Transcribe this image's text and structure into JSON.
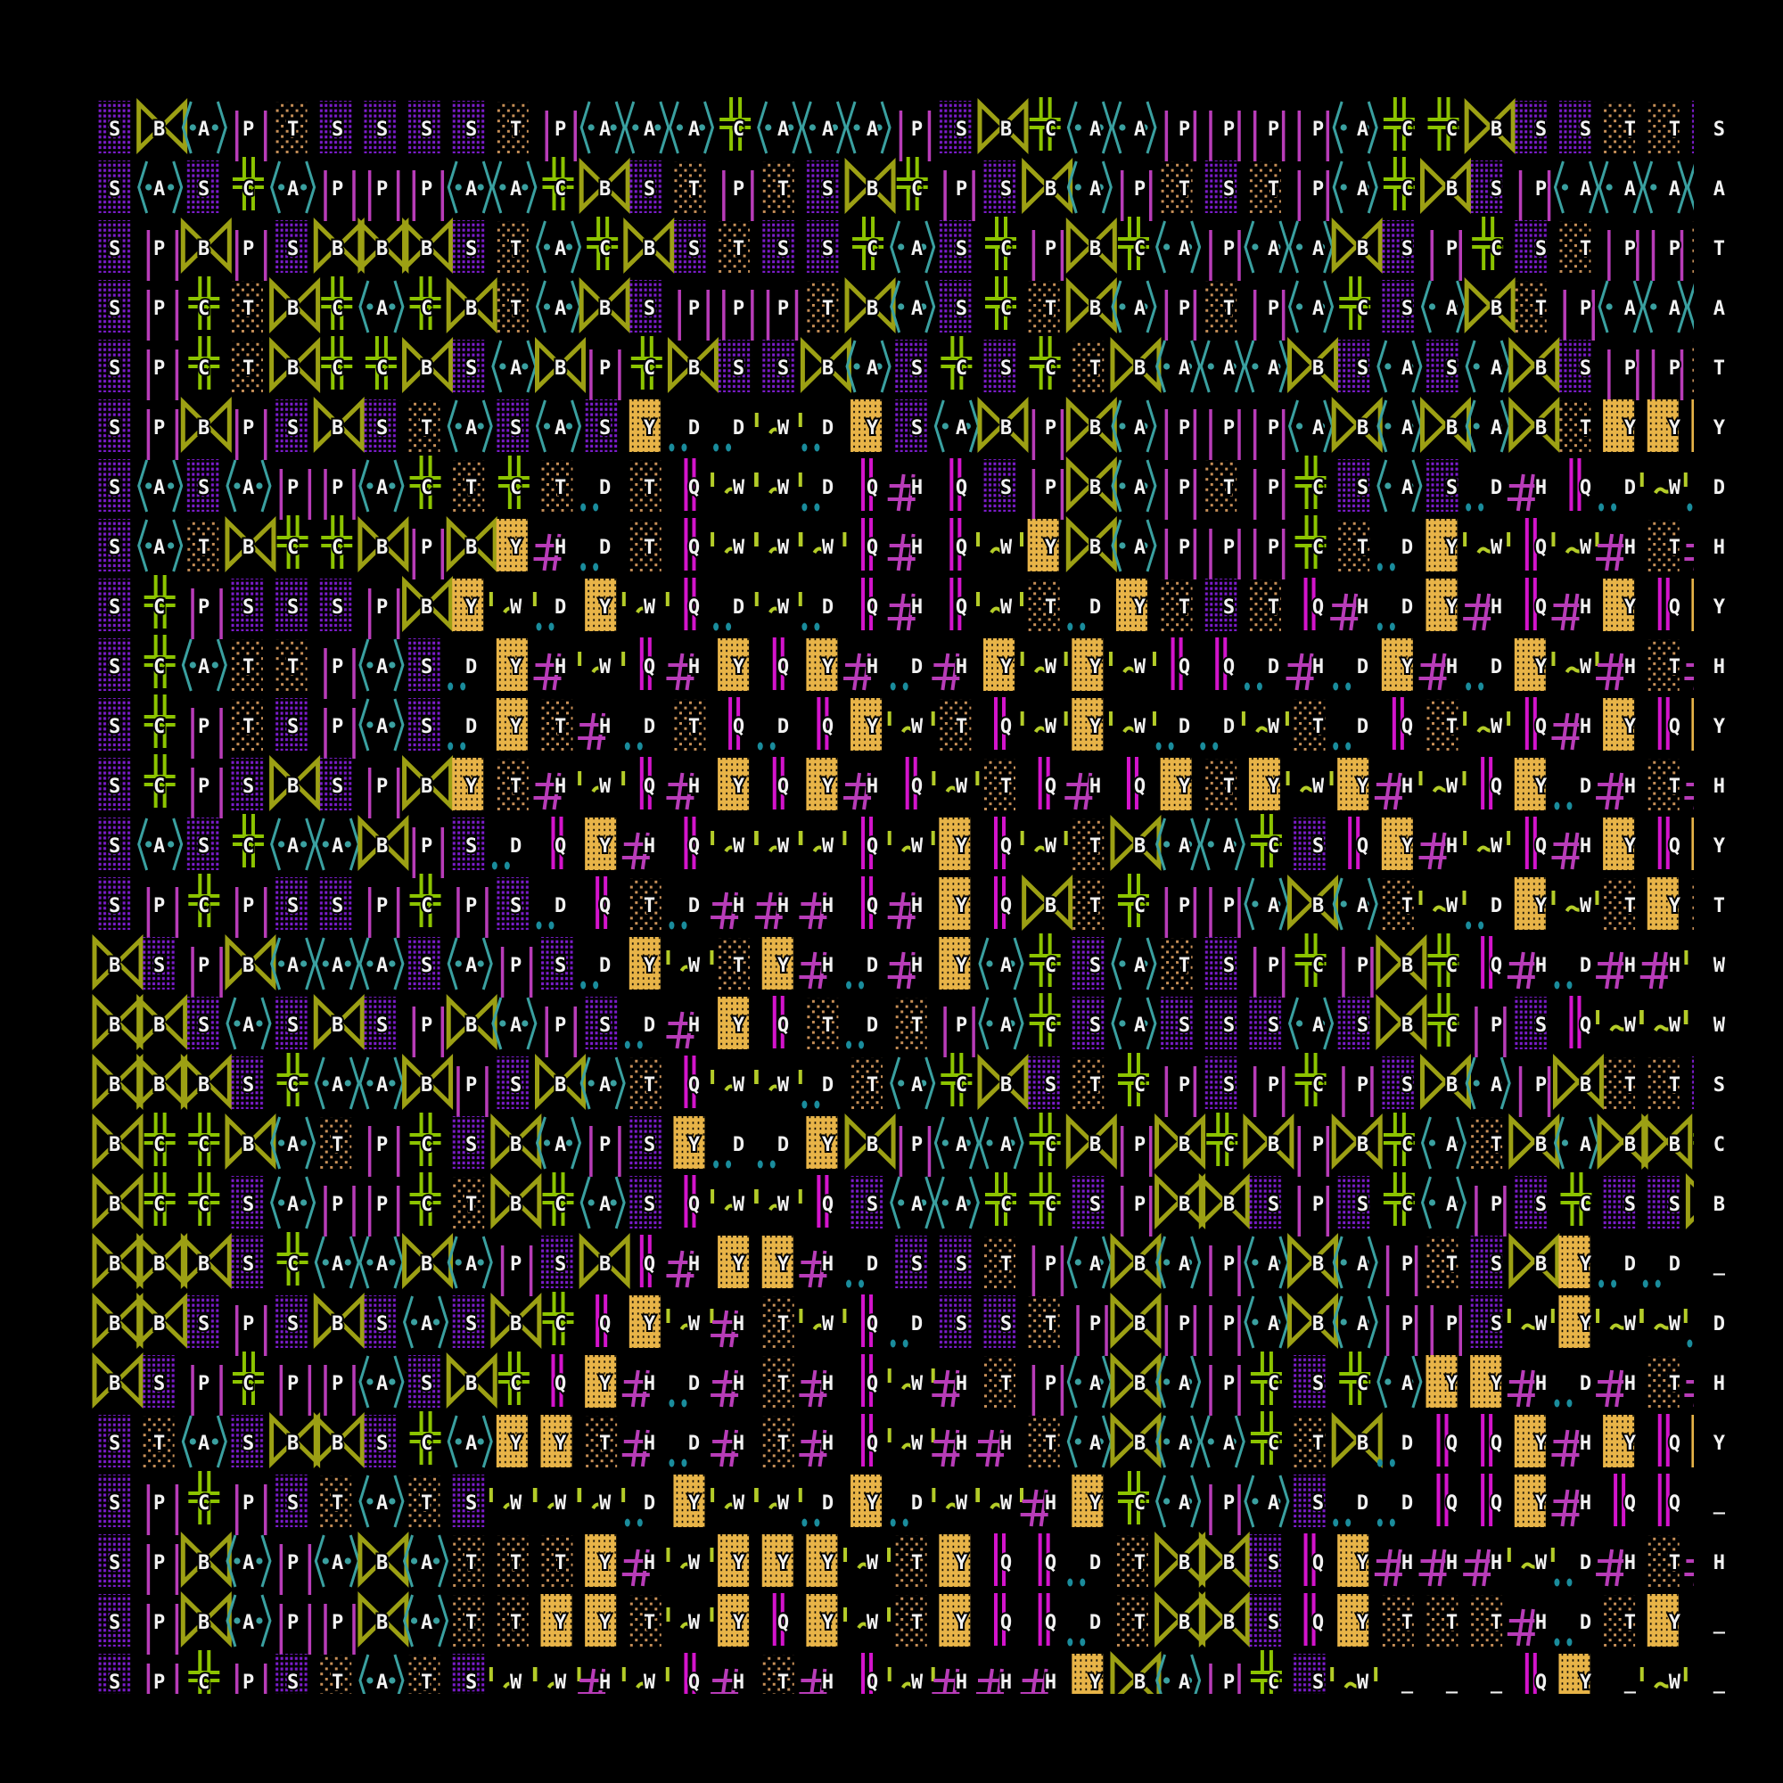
{
  "artwork": {
    "background": "#000000",
    "glyph_types": {
      "S": {
        "name": "dense-dot-block-purple",
        "color": "#7c1ccc"
      },
      "T": {
        "name": "sparse-dot-block-tan",
        "color": "#c89058"
      },
      "Y": {
        "name": "solid-block-gold",
        "color": "#e8b448"
      },
      "B": {
        "name": "bowtie-olive",
        "color": "#9ca014"
      },
      "A": {
        "name": "angle-brackets-dots-teal",
        "color": "#3aa0a0"
      },
      "P": {
        "name": "wide-double-bar-magenta",
        "color": "#b83cb8"
      },
      "Q": {
        "name": "narrow-double-bar-magenta",
        "color": "#d414cc"
      },
      "C": {
        "name": "double-cross-green",
        "color": "#8cc400"
      },
      "H": {
        "name": "hash-magenta",
        "color": "#b83cb8"
      },
      "W": {
        "name": "quote-tilde-quote-yellowgreen",
        "color": "#b4cc28"
      },
      "D": {
        "name": "double-dot-teal",
        "color": "#1a8c9c"
      }
    },
    "rows": [
      "SBAPTSSSSTPAAACAAAPSBCAAPPPPACCBSSTTS",
      "SASCAPPPAACBSTPTSBCPSBAPTSTPACBSPAAAA",
      "SPBPSBBBSTACBSTSSCASCPBCAPAABSPCSTPPT",
      "SPCTBCACBTABSPPPTBASCTBAPTPACSABTPAAA",
      "SPCTBCCBSABPCBSSBASCSCTBAAABSASABSPPT",
      "SPBPSBSTASASYDDWDYSABPBAPPPABABABTYYY",
      "SASAPPACTCTDTQWWDQHQSPBAPTPCSASDHQDWD",
      "SATBCCBPBYHDTQWWWQHQWYBAPPPCTDYWQWHTH",
      "SCPSSSPBYWDYWQDWDQHQWTDYTSTQHDYHQHYQY",
      "SCATTPASDYHWQHYQYHDHYWYWQQDHDYHDYWHTH",
      "SCPTSPASDYTHDTQDQYWTQWYWDDWTDQTWQHYQY",
      "SCPSBSPBYTHWQHYQYHQWTQHQYTYWYHWQYDHTH",
      "SASCAABPSDQYHQWWWQWYQWTBAACSQYHWQHYQY",
      "SPCPSSPCPSDQTDHHHQHYQBTCPPABATWDYWTYT",
      "BSPBAAASAPSDYWTYHDHYACSATSPCPBCQHDHHW",
      "BBSASBSPBAPSDHYQTDTPACSASSSASBCPSQWWW",
      "BBBSCAABPSBATQWWDTACBSTCPSPCPSBAPBTTS",
      "BCCBATPCSBAPSYDDYBPAACBPBCBPBCATBABBC",
      "BCCSAPPCTBCASQWWQSAACCSPBBSPSCAPSCSSB",
      "BBBSCAABAPSBQHYYHDSSTPABAPABAPTSBYDD_",
      "BBSPSBSASBCQYWHTWQDSSTPBPPABAPPSWYWWD",
      "BSPCPPASBCQYHDHTHQWHTPABAPCSCAYYHDHTH",
      "STASBBSCAYYTHDHTHQWHHTABAACTBDQQYHYQY",
      "SPCPSTATSWWWDYWWDYDWWHYCAPASDDQQYHQQ_",
      "SPBAPABATTTYHWYYYWTYQQDTBBSQYHHHWDHTH",
      "SPBAPPBATTYYTWYQYWTYQQDTBBSQYTTTHDTY_",
      "SPCPSTATSWWHWQHTHQWHHHYBAPCSW___QY_W_"
    ]
  }
}
